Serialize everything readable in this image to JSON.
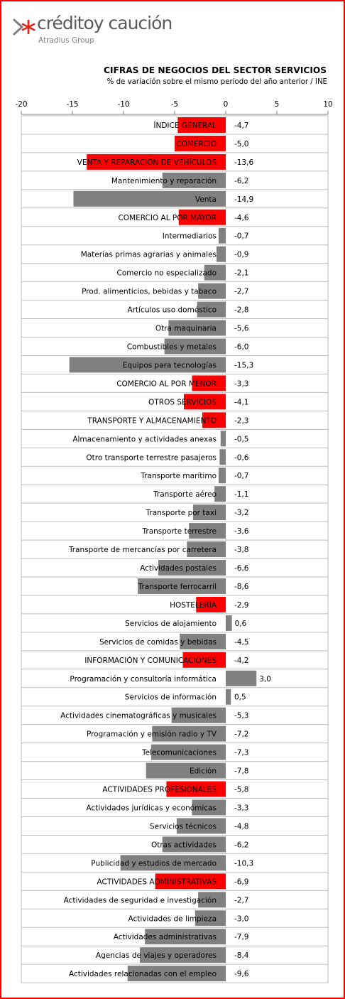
{
  "brand": {
    "name": "créditoy caución",
    "group": "Atradius Group",
    "accent_color": "#e2231a"
  },
  "chart_data": {
    "type": "bar",
    "orientation": "horizontal",
    "title": "CIFRAS DE NEGOCIOS DEL SECTOR SERVICIOS",
    "subtitle": "% de variación sobre el mismo periodo del año anterior / INE",
    "xlim": [
      -20,
      10
    ],
    "xticks": [
      "-20",
      "-15",
      "-10",
      "-5",
      "0",
      "5",
      "10"
    ],
    "grid": false,
    "legend": "none",
    "colors": {
      "sector_total": "#ff0000",
      "subsector": "#808080"
    },
    "categories": [
      "ÍNDICE GENERAL",
      "COMERCIO",
      "VENTA Y REPARACIÓN DE VEHÍCULOS",
      "Mantenimiento y reparación",
      "Venta",
      "COMERCIO AL POR MAYOR",
      "Intermediarios",
      "Materias primas agrarias  y animales",
      "Comercio no especializado",
      "Prod. alimenticios, bebidas y tabaco",
      "Artículos uso doméstico",
      "Otra maquinaria",
      "Combustibles y metales",
      "Equipos para tecnologías",
      "COMERCIO AL POR MENOR",
      "OTROS SERVICIOS",
      "TRANSPORTE Y ALMACENAMIENTO",
      "Almacenamiento y actividades  anexas",
      "Otro transporte terrestre pasajeros",
      "Transporte marítimo",
      "Transporte aéreo",
      "Transporte por taxi",
      "Transporte terrestre",
      "Transporte de mercancías por carretera",
      "Actividades postales",
      "Transporte ferrocarril",
      "HOSTELERÍA",
      "Servicios de alojamiento",
      "Servicios de comidas y bebidas",
      "INFORMACIÓN Y COMUNICACIONES",
      "Programación y consultoría informática",
      "Servicios de información",
      "Actividades cinematográficas  y musicales",
      "Programación y emisión radio y TV",
      "Telecomunicaciones",
      "Edición",
      "ACTIVIDADES PROFESIONALES",
      "Actividades jurídicas  y económicas",
      "Servicios técnicos",
      "Otras actividades",
      "Publicidad  y estudios de mercado",
      "ACTIVIDADES ADMINISTRATIVAS",
      "Actividades de seguridad e investigación",
      "Actividades de limpieza",
      "Actividades administrativas",
      "Agencias de viajes y operadores",
      "Actividades relacionadas  con el empleo"
    ],
    "values": [
      -4.7,
      -5.0,
      -13.6,
      -6.2,
      -14.9,
      -4.6,
      -0.7,
      -0.9,
      -2.1,
      -2.7,
      -2.8,
      -5.6,
      -6.0,
      -15.3,
      -3.3,
      -4.1,
      -2.3,
      -0.5,
      -0.6,
      -0.7,
      -1.1,
      -3.2,
      -3.6,
      -3.8,
      -6.6,
      -8.6,
      -2.9,
      0.6,
      -4.5,
      -4.2,
      3.0,
      0.5,
      -5.3,
      -7.2,
      -7.3,
      -7.8,
      -5.8,
      -3.3,
      -4.8,
      -6.2,
      -10.3,
      -6.9,
      -2.7,
      -3.0,
      -7.9,
      -8.4,
      -9.6
    ],
    "value_labels": [
      "-4,7",
      "-5,0",
      "-13,6",
      "-6,2",
      "-14,9",
      "-4,6",
      "-0,7",
      "-0,9",
      "-2,1",
      "-2,7",
      "-2,8",
      "-5,6",
      "-6,0",
      "-15,3",
      "-3,3",
      "-4,1",
      "-2,3",
      "-0,5",
      "-0,6",
      "-0,7",
      "-1,1",
      "-3,2",
      "-3,6",
      "-3,8",
      "-6,6",
      "-8,6",
      "-2,9",
      "0,6",
      "-4,5",
      "-4,2",
      "3,0",
      "0,5",
      "-5,3",
      "-7,2",
      "-7,3",
      "-7,8",
      "-5,8",
      "-3,3",
      "-4,8",
      "-6,2",
      "-10,3",
      "-6,9",
      "-2,7",
      "-3,0",
      "-7,9",
      "-8,4",
      "-9,6"
    ],
    "highlight": [
      true,
      true,
      true,
      false,
      false,
      true,
      false,
      false,
      false,
      false,
      false,
      false,
      false,
      false,
      true,
      true,
      true,
      false,
      false,
      false,
      false,
      false,
      false,
      false,
      false,
      false,
      true,
      false,
      false,
      true,
      false,
      false,
      false,
      false,
      false,
      false,
      true,
      false,
      false,
      false,
      false,
      true,
      false,
      false,
      false,
      false,
      false
    ]
  }
}
